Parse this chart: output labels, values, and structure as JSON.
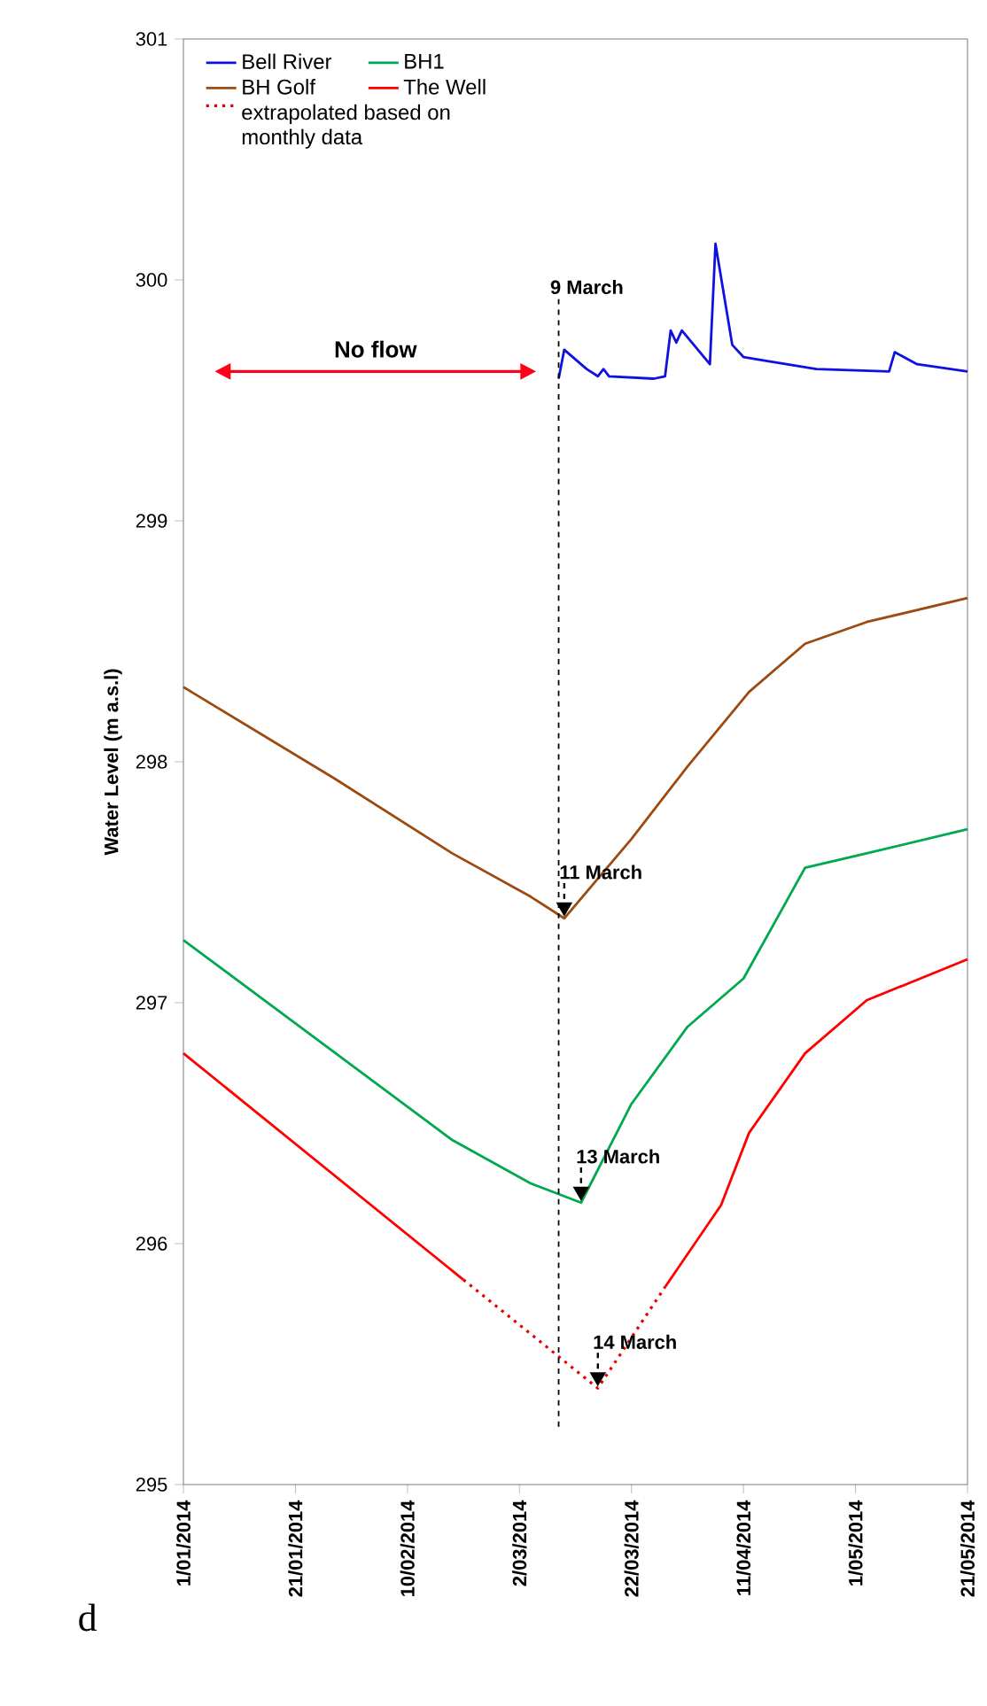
{
  "chart_data": {
    "type": "line",
    "ylabel": "Water Level (m a.s.l)",
    "xlim": [
      "2014-01-01",
      "2014-05-21"
    ],
    "xticks": [
      {
        "value": "2014-01-01",
        "label": "1/01/2014"
      },
      {
        "value": "2014-01-21",
        "label": "21/01/2014"
      },
      {
        "value": "2014-02-10",
        "label": "10/02/2014"
      },
      {
        "value": "2014-03-02",
        "label": "2/03/2014"
      },
      {
        "value": "2014-03-22",
        "label": "22/03/2014"
      },
      {
        "value": "2014-04-11",
        "label": "11/04/2014"
      },
      {
        "value": "2014-05-01",
        "label": "1/05/2014"
      },
      {
        "value": "2014-05-21",
        "label": "21/05/2014"
      }
    ],
    "ylim": [
      295,
      301
    ],
    "yticks": [
      295,
      296,
      297,
      298,
      299,
      300,
      301
    ],
    "grid": false,
    "legend": "top left",
    "line_style": "solid",
    "marker": "none",
    "series": [
      {
        "name": "Bell River",
        "color": "#1010e0",
        "x": [
          "2014-03-09",
          "2014-03-10",
          "2014-03-14",
          "2014-03-16",
          "2014-03-17",
          "2014-03-18",
          "2014-03-26",
          "2014-03-28",
          "2014-03-29",
          "2014-03-30",
          "2014-03-31",
          "2014-04-05",
          "2014-04-06",
          "2014-04-09",
          "2014-04-11",
          "2014-04-16",
          "2014-04-24",
          "2014-05-07",
          "2014-05-08",
          "2014-05-12",
          "2014-05-21"
        ],
        "values": [
          299.59,
          299.71,
          299.63,
          299.6,
          299.63,
          299.6,
          299.59,
          299.6,
          299.79,
          299.74,
          299.79,
          299.65,
          300.15,
          299.73,
          299.68,
          299.66,
          299.63,
          299.62,
          299.7,
          299.65,
          299.62
        ]
      },
      {
        "name": "BH1",
        "color": "#00a84f",
        "x": [
          "2014-01-01",
          "2014-02-18",
          "2014-03-04",
          "2014-03-13",
          "2014-03-22",
          "2014-04-01",
          "2014-04-11",
          "2014-04-22",
          "2014-05-03",
          "2014-05-21"
        ],
        "values": [
          297.26,
          296.43,
          296.25,
          296.17,
          296.58,
          296.9,
          297.1,
          297.56,
          297.62,
          297.72
        ]
      },
      {
        "name": "BH Golf",
        "color": "#9c4a0f",
        "x": [
          "2014-01-01",
          "2014-01-28",
          "2014-02-18",
          "2014-03-04",
          "2014-03-10",
          "2014-03-22",
          "2014-04-01",
          "2014-04-12",
          "2014-04-22",
          "2014-05-03",
          "2014-05-21"
        ],
        "values": [
          298.31,
          297.93,
          297.62,
          297.44,
          297.35,
          297.68,
          297.98,
          298.29,
          298.49,
          298.58,
          298.68
        ]
      },
      {
        "name": "The Well",
        "color": "#ff0000",
        "x": [
          "2014-01-01",
          "2014-02-20",
          "2014-03-05",
          "2014-03-28",
          "2014-04-07",
          "2014-04-12",
          "2014-04-22",
          "2014-05-03",
          "2014-05-21"
        ],
        "values": [
          296.79,
          295.85,
          null,
          295.82,
          296.16,
          296.46,
          296.79,
          297.01,
          297.18
        ]
      },
      {
        "name": "extrapolated based on monthly data",
        "color": "#e60000",
        "line_style": "dotted",
        "x": [
          "2014-02-20",
          "2014-03-16",
          "2014-03-28"
        ],
        "values": [
          295.85,
          295.4,
          295.82
        ]
      }
    ],
    "ref_lines": [
      {
        "axis": "x",
        "value": "2014-03-09",
        "label": "9 March",
        "color": "#000000",
        "line_style": "dashed"
      }
    ],
    "annotations": [
      {
        "text": "11 March",
        "x": "2014-03-10",
        "y": 297.35
      },
      {
        "text": "13 March",
        "x": "2014-03-13",
        "y": 296.17
      },
      {
        "text": "14 March",
        "x": "2014-03-16",
        "y": 295.4
      },
      "No flow",
      "d"
    ]
  }
}
